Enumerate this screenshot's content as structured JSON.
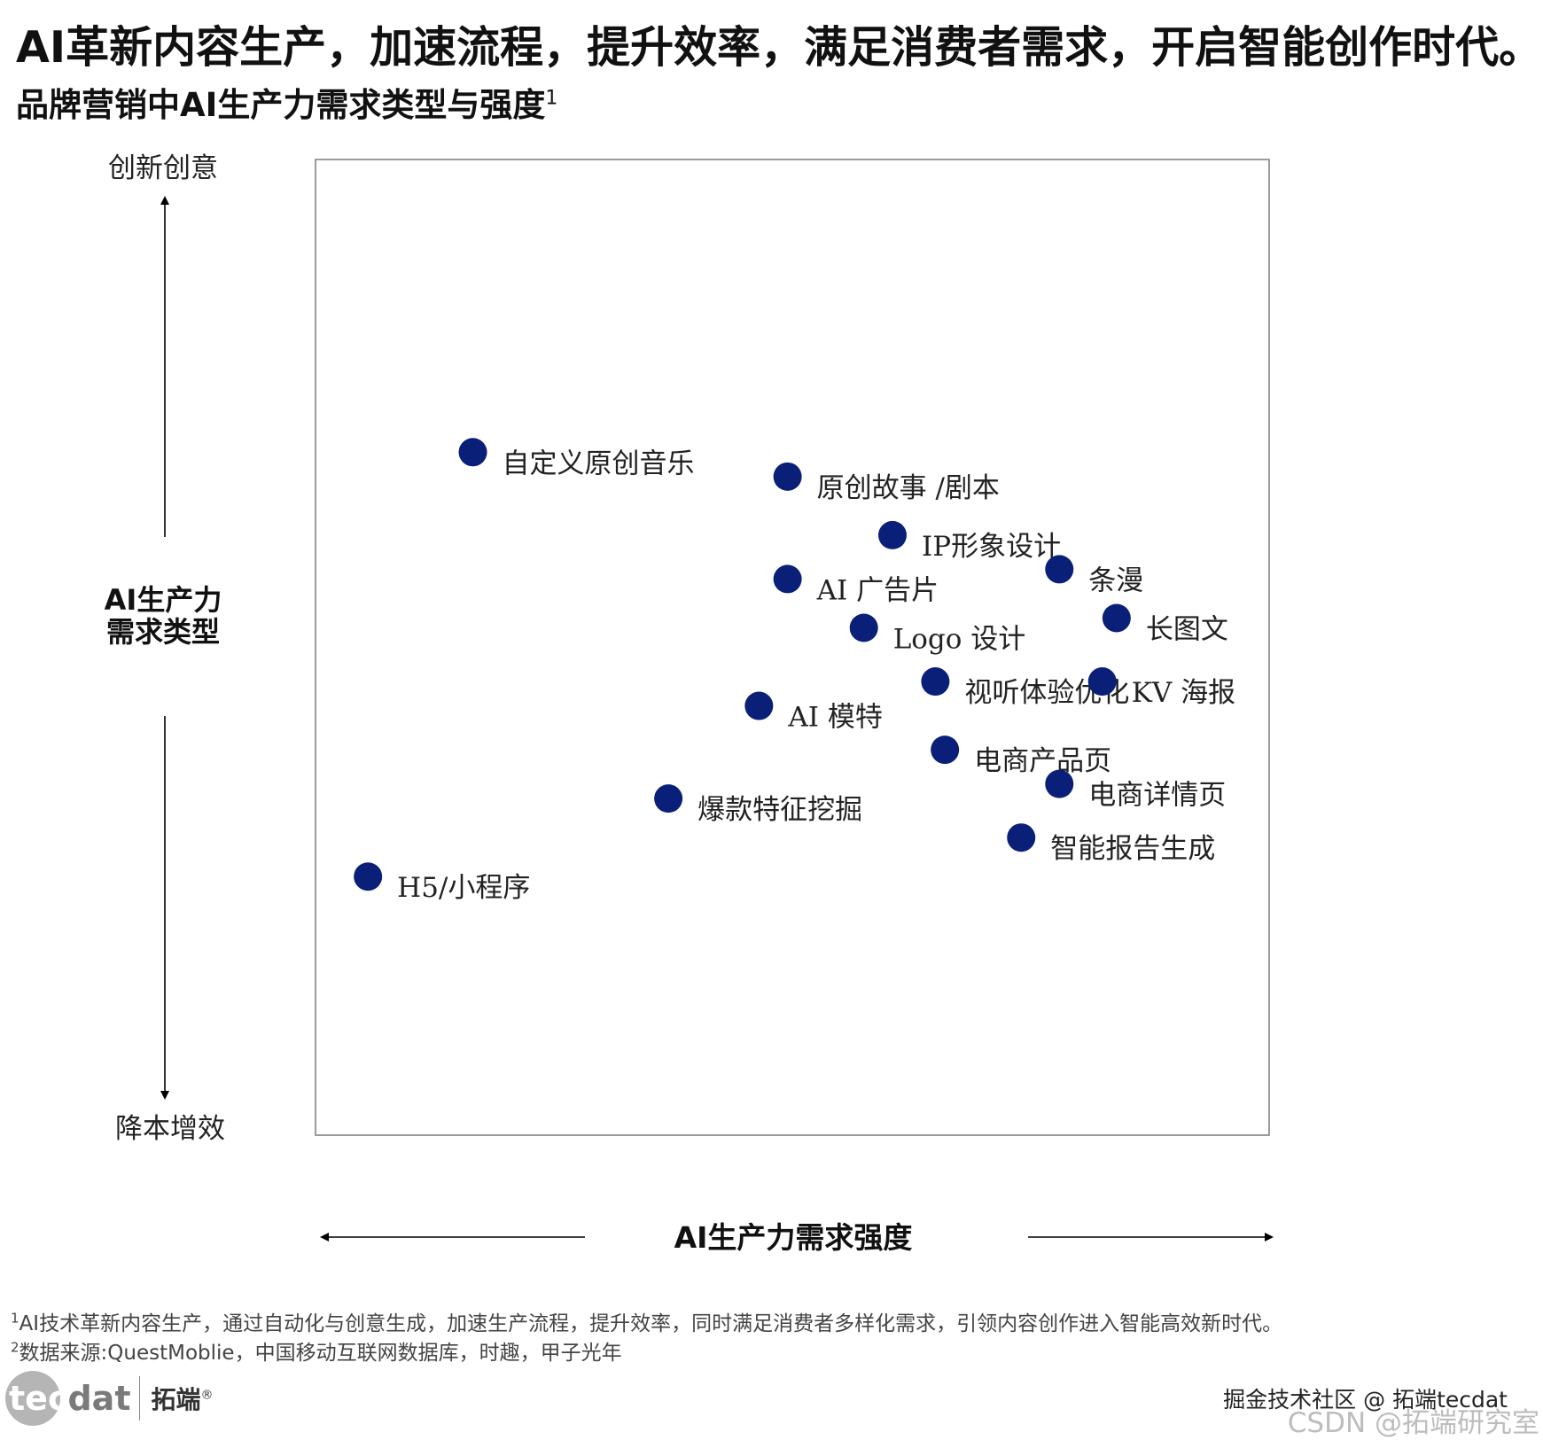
{
  "header": {
    "headline": "AI革新内容生产，加速流程，提升效率，满足消费者需求，开启智能创作时代。",
    "subtitle": "品牌营销中AI生产力需求类型与强度",
    "subtitle_sup": "1"
  },
  "chart_data": {
    "type": "scatter",
    "title": "品牌营销中AI生产力需求类型与强度",
    "xlabel": "AI生产力需求强度",
    "ylabel": "AI生产力需求类型",
    "y_top_label": "创新创意",
    "y_bottom_label": "降本增效",
    "xlim": [
      0,
      100
    ],
    "ylim": [
      0,
      100
    ],
    "grid": false,
    "marker_color": "#0a1f78",
    "points": [
      {
        "label": "自定义原创音乐",
        "x": 16.5,
        "y": 70
      },
      {
        "label": "原创故事 /剧本",
        "x": 49.5,
        "y": 67.5
      },
      {
        "label": "IP形象设计",
        "x": 60.5,
        "y": 61.5
      },
      {
        "label": "条漫",
        "x": 78,
        "y": 58
      },
      {
        "label": "AI 广告片",
        "x": 49.5,
        "y": 57
      },
      {
        "label": "长图文",
        "x": 84,
        "y": 53
      },
      {
        "label": "Logo  设计",
        "x": 57.5,
        "y": 52
      },
      {
        "label": "视听体验优化",
        "x": 65,
        "y": 46.5
      },
      {
        "label": "KV 海报",
        "x": 82.5,
        "y": 46.5
      },
      {
        "label": "AI 模特",
        "x": 46.5,
        "y": 44
      },
      {
        "label": "电商产品页",
        "x": 66,
        "y": 39.5
      },
      {
        "label": "电商详情页",
        "x": 78,
        "y": 36
      },
      {
        "label": "爆款特征挖掘",
        "x": 37,
        "y": 34.5
      },
      {
        "label": "智能报告生成",
        "x": 74,
        "y": 30.5
      },
      {
        "label": "H5/小程序",
        "x": 5.5,
        "y": 26.5
      }
    ]
  },
  "footnotes": [
    {
      "sup": "1",
      "text": "AI技术革新内容生产，通过自动化与创意生成，加速生产流程，提升效率，同时满足消费者多样化需求，引领内容创作进入智能高效新时代。"
    },
    {
      "sup": "2",
      "text": "数据来源:QuestMoblie，中国移动互联网数据库，时趣，甲子光年"
    }
  ],
  "logo": {
    "word_part1": "tec",
    "word_part2": "dat",
    "cn": "拓端",
    "reg": "®"
  },
  "watermarks": {
    "line1": "掘金技术社区 @ 拓端tecdat",
    "line2": "CSDN @拓端研究室"
  }
}
